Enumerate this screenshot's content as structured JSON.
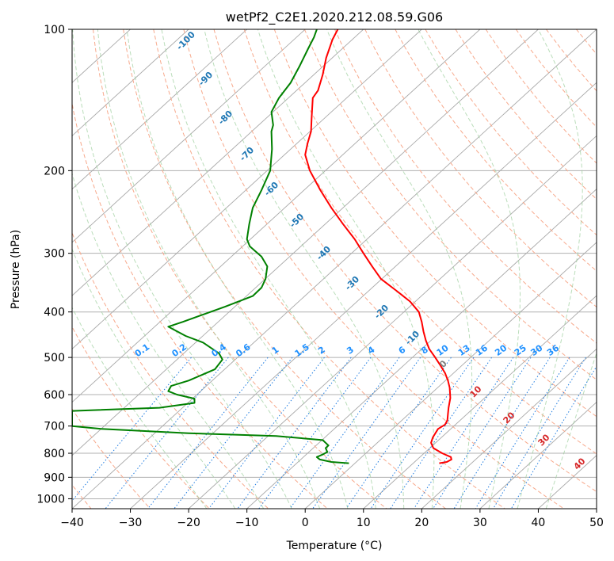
{
  "chart_data": {
    "type": "line",
    "title": "wetPf2_C2E1.2020.212.08.59.G06",
    "xlabel": "Temperature (°C)",
    "ylabel": "Pressure (hPa)",
    "xlim": [
      -40,
      50
    ],
    "ylim": [
      1050,
      100
    ],
    "y_scale": "log",
    "grid": true,
    "x_ticks": [
      "−40",
      "−30",
      "−20",
      "−10",
      "0",
      "10",
      "20",
      "30",
      "40",
      "50"
    ],
    "x_tick_values": [
      -40,
      -30,
      -20,
      -10,
      0,
      10,
      20,
      30,
      40,
      50
    ],
    "y_ticks": [
      "100",
      "200",
      "300",
      "400",
      "500",
      "600",
      "700",
      "800",
      "900",
      "1000"
    ],
    "y_tick_values": [
      100,
      200,
      300,
      400,
      500,
      600,
      700,
      800,
      900,
      1000
    ],
    "series": [
      {
        "color": "#ff0000",
        "points": [
          [
            840,
            23.0
          ],
          [
            835,
            24.3
          ],
          [
            825,
            25.1
          ],
          [
            815,
            25.0
          ],
          [
            800,
            23.5
          ],
          [
            780,
            22.0
          ],
          [
            760,
            21.6
          ],
          [
            740,
            21.9
          ],
          [
            710,
            22.8
          ],
          [
            695,
            24.0
          ],
          [
            680,
            24.4
          ],
          [
            660,
            24.5
          ],
          [
            640,
            24.6
          ],
          [
            610,
            24.9
          ],
          [
            580,
            24.8
          ],
          [
            560,
            24.5
          ],
          [
            540,
            24.0
          ],
          [
            520,
            23.2
          ],
          [
            500,
            22.3
          ],
          [
            480,
            21.3
          ],
          [
            460,
            20.7
          ],
          [
            440,
            20.3
          ],
          [
            420,
            20.0
          ],
          [
            400,
            19.5
          ],
          [
            380,
            18.0
          ],
          [
            360,
            15.6
          ],
          [
            340,
            13.0
          ],
          [
            320,
            11.5
          ],
          [
            300,
            10.0
          ],
          [
            280,
            8.5
          ],
          [
            260,
            6.5
          ],
          [
            240,
            4.5
          ],
          [
            220,
            2.6
          ],
          [
            200,
            0.8
          ],
          [
            185,
            0.0
          ],
          [
            175,
            0.4
          ],
          [
            165,
            1.0
          ],
          [
            155,
            1.1
          ],
          [
            140,
            1.3
          ],
          [
            135,
            2.2
          ],
          [
            125,
            3.0
          ],
          [
            115,
            3.6
          ],
          [
            105,
            4.7
          ],
          [
            100,
            5.6
          ]
        ]
      },
      {
        "color": "#008000",
        "points": [
          [
            840,
            7.5
          ],
          [
            835,
            4.5
          ],
          [
            825,
            2.5
          ],
          [
            815,
            2.0
          ],
          [
            805,
            3.0
          ],
          [
            795,
            3.8
          ],
          [
            780,
            3.5
          ],
          [
            770,
            4.0
          ],
          [
            750,
            3.0
          ],
          [
            735,
            -5.0
          ],
          [
            725,
            -20.0
          ],
          [
            710,
            -35.0
          ],
          [
            700,
            -40.0
          ],
          [
            650,
            -40.0
          ],
          [
            640,
            -25.0
          ],
          [
            625,
            -19.0
          ],
          [
            612,
            -19.0
          ],
          [
            600,
            -22.0
          ],
          [
            590,
            -23.5
          ],
          [
            575,
            -23.0
          ],
          [
            560,
            -20.0
          ],
          [
            530,
            -15.5
          ],
          [
            505,
            -14.2
          ],
          [
            490,
            -14.8
          ],
          [
            465,
            -17.5
          ],
          [
            450,
            -20.5
          ],
          [
            430,
            -23.5
          ],
          [
            420,
            -21.0
          ],
          [
            405,
            -17.5
          ],
          [
            390,
            -13.8
          ],
          [
            370,
            -9.0
          ],
          [
            355,
            -7.5
          ],
          [
            340,
            -6.8
          ],
          [
            320,
            -6.5
          ],
          [
            305,
            -7.5
          ],
          [
            290,
            -9.5
          ],
          [
            280,
            -10.0
          ],
          [
            270,
            -9.8
          ],
          [
            260,
            -9.6
          ],
          [
            240,
            -9.0
          ],
          [
            220,
            -7.5
          ],
          [
            200,
            -6.0
          ],
          [
            180,
            -5.7
          ],
          [
            165,
            -5.8
          ],
          [
            160,
            -5.5
          ],
          [
            150,
            -5.8
          ],
          [
            140,
            -4.5
          ],
          [
            130,
            -2.5
          ],
          [
            120,
            -1.0
          ],
          [
            110,
            0.5
          ],
          [
            104,
            1.5
          ],
          [
            100,
            2.0
          ]
        ]
      }
    ],
    "mixing_ratio_labels": [
      "0.1",
      "0.2",
      "0.4",
      "0.6",
      "1",
      "1.5",
      "2",
      "3",
      "4",
      "6",
      "8",
      "10",
      "13",
      "16",
      "20",
      "25",
      "30",
      "36"
    ],
    "dry_adiabat_labels": [
      "-100",
      "-90",
      "-80",
      "-70",
      "-60",
      "-50",
      "-40",
      "-30",
      "-20",
      "-10",
      "0",
      "10",
      "20",
      "30",
      "40"
    ]
  }
}
